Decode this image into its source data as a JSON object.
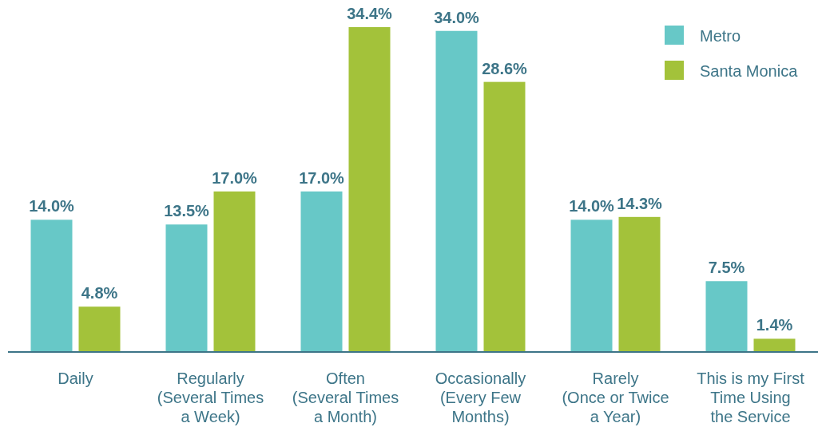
{
  "chart_data": {
    "type": "bar",
    "categories": [
      "Daily",
      "Regularly\n(Several Times\na Week)",
      "Often\n(Several Times\na Month)",
      "Occasionally\n(Every Few\nMonths)",
      "Rarely\n(Once or Twice\na Year)",
      "This is my First\nTime Using\nthe Service"
    ],
    "series": [
      {
        "name": "Metro",
        "color": "#67c8c7",
        "values": [
          14.0,
          13.5,
          17.0,
          34.0,
          14.0,
          7.5
        ],
        "value_labels": [
          "14.0%",
          "13.5%",
          "17.0%",
          "34.0%",
          "14.0%",
          "7.5%"
        ]
      },
      {
        "name": "Santa Monica",
        "color": "#a3c23a",
        "values": [
          4.8,
          17.0,
          34.4,
          28.6,
          14.3,
          1.4
        ],
        "value_labels": [
          "4.8%",
          "17.0%",
          "34.4%",
          "28.6%",
          "14.3%",
          "1.4%"
        ]
      }
    ],
    "legend": "top right"
  }
}
